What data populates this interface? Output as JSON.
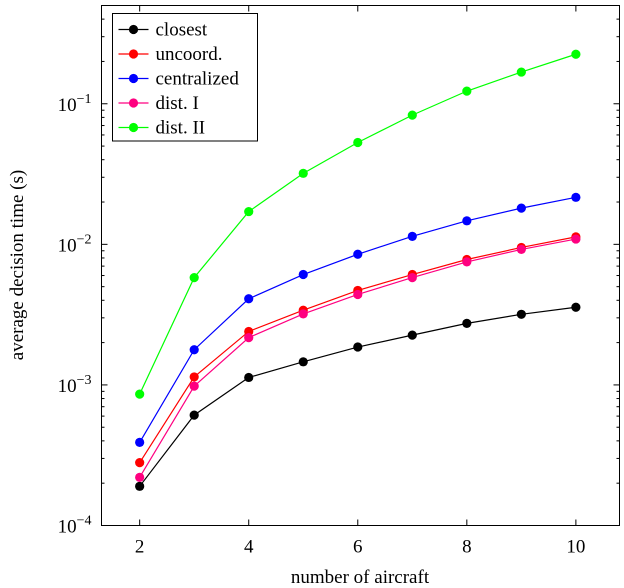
{
  "chart_data": {
    "type": "line",
    "x": [
      2,
      3,
      4,
      5,
      6,
      7,
      8,
      9,
      10
    ],
    "xlabel": "number of aircraft",
    "ylabel": "average decision time (s)",
    "xlim": [
      1.3,
      10.8
    ],
    "ylim": [
      0.0001,
      0.5
    ],
    "yscale": "log",
    "xticks": [
      2,
      4,
      6,
      8,
      10
    ],
    "xtick_labels": [
      "2",
      "4",
      "6",
      "8",
      "10"
    ],
    "yticks": [
      0.0001,
      0.001,
      0.01,
      0.1
    ],
    "ytick_labels": [
      {
        "base": "10",
        "exp": "−4"
      },
      {
        "base": "10",
        "exp": "−3"
      },
      {
        "base": "10",
        "exp": "−2"
      },
      {
        "base": "10",
        "exp": "−1"
      }
    ],
    "grid": false,
    "legend_position": "top-left",
    "series": [
      {
        "name": "closest",
        "color": "#000000",
        "values": [
          0.00019,
          0.00061,
          0.00113,
          0.00146,
          0.00186,
          0.00226,
          0.00274,
          0.00318,
          0.00357
        ]
      },
      {
        "name": "uncoord.",
        "color": "#ff0000",
        "values": [
          0.00028,
          0.00114,
          0.0024,
          0.0034,
          0.0047,
          0.0061,
          0.0078,
          0.0095,
          0.0113
        ]
      },
      {
        "name": "centralized",
        "color": "#0000ff",
        "values": [
          0.00039,
          0.00178,
          0.0041,
          0.0061,
          0.0085,
          0.0114,
          0.0147,
          0.0181,
          0.0216
        ]
      },
      {
        "name": "dist. I",
        "color": "#ff0080",
        "values": [
          0.00022,
          0.00098,
          0.00217,
          0.0032,
          0.0044,
          0.0058,
          0.0075,
          0.0092,
          0.0109
        ]
      },
      {
        "name": "dist. II",
        "color": "#00ff00",
        "values": [
          0.00086,
          0.0058,
          0.0171,
          0.032,
          0.053,
          0.083,
          0.123,
          0.168,
          0.225
        ]
      }
    ]
  }
}
